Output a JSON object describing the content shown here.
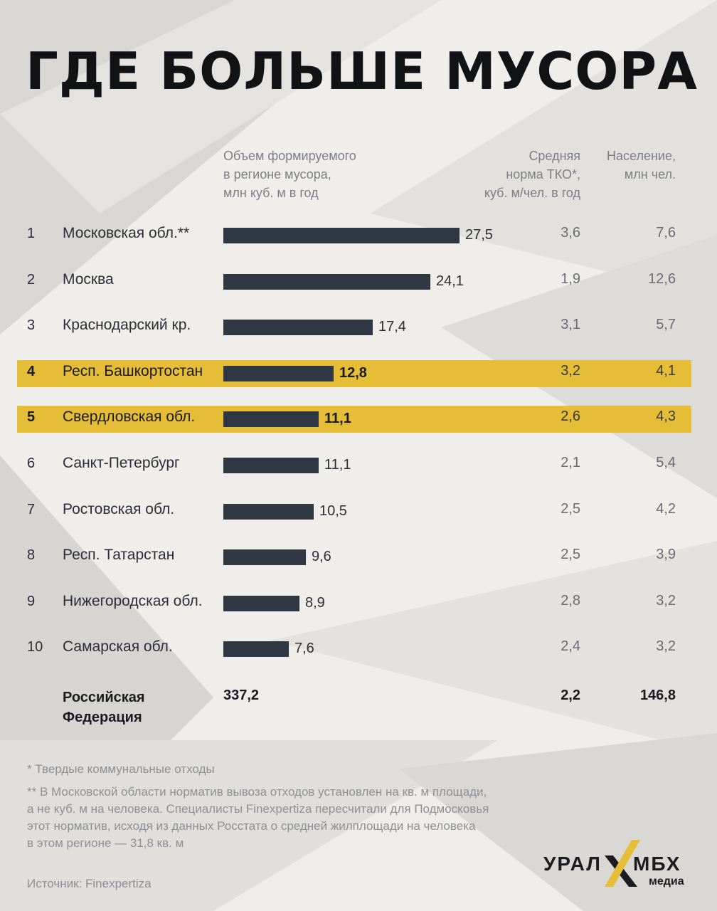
{
  "title": "ГДЕ БОЛЬШЕ МУСОРА",
  "columns": {
    "volume": "Объем формируемого\nв регионе мусора,\nмлн куб. м в год",
    "norm": "Средняя\nнорма ТКО*,\nкуб. м/чел. в год",
    "population": "Население,\nмлн чел."
  },
  "highlight_color": "#e6bd36",
  "bar_color": "#2f3743",
  "rows": [
    {
      "rank": "1",
      "region": "Московская обл.**",
      "volume": "27,5",
      "norm": "3,6",
      "population": "7,6",
      "highlight": false
    },
    {
      "rank": "2",
      "region": "Москва",
      "volume": "24,1",
      "norm": "1,9",
      "population": "12,6",
      "highlight": false
    },
    {
      "rank": "3",
      "region": "Краснодарский кр.",
      "volume": "17,4",
      "norm": "3,1",
      "population": "5,7",
      "highlight": false
    },
    {
      "rank": "4",
      "region": "Респ. Башкортостан",
      "volume": "12,8",
      "norm": "3,2",
      "population": "4,1",
      "highlight": true
    },
    {
      "rank": "5",
      "region": "Свердловская обл.",
      "volume": "11,1",
      "norm": "2,6",
      "population": "4,3",
      "highlight": true
    },
    {
      "rank": "6",
      "region": "Санкт-Петербург",
      "volume": "11,1",
      "norm": "2,1",
      "population": "5,4",
      "highlight": false
    },
    {
      "rank": "7",
      "region": "Ростовская обл.",
      "volume": "10,5",
      "norm": "2,5",
      "population": "4,2",
      "highlight": false
    },
    {
      "rank": "8",
      "region": "Респ. Татарстан",
      "volume": "9,6",
      "norm": "2,5",
      "population": "3,9",
      "highlight": false
    },
    {
      "rank": "9",
      "region": "Нижегородская обл.",
      "volume": "8,9",
      "norm": "2,8",
      "population": "3,2",
      "highlight": false
    },
    {
      "rank": "10",
      "region": "Самарская обл.",
      "volume": "7,6",
      "norm": "2,4",
      "population": "3,2",
      "highlight": false
    }
  ],
  "total": {
    "label": "Российская\nФедерация",
    "volume": "337,2",
    "norm": "2,2",
    "population": "146,8"
  },
  "footnotes": {
    "note1": "* Твердые коммунальные отходы",
    "note2": "** В Московской области норматив вывоза отходов установлен на кв. м площади,\nа не куб. м на человека. Специалисты Finexpertiza пересчитали для Подмосковья\nэтот норматив, исходя из данных Росстата о средней жилплощади на человека\nв этом регионе — 31,8 кв. м"
  },
  "source": "Источник: Finexpertiza",
  "logo": {
    "left": "УРАЛ",
    "right": "МБХ",
    "sub": "медиа"
  },
  "chart_data": {
    "type": "bar",
    "title": "ГДЕ БОЛЬШЕ МУСОРА",
    "orientation": "horizontal",
    "categories": [
      "Московская обл.**",
      "Москва",
      "Краснодарский кр.",
      "Респ. Башкортостан",
      "Свердловская обл.",
      "Санкт-Петербург",
      "Ростовская обл.",
      "Респ. Татарстан",
      "Нижегородская обл.",
      "Самарская обл."
    ],
    "series": [
      {
        "name": "Объем формируемого в регионе мусора, млн куб. м в год",
        "values": [
          27.5,
          24.1,
          17.4,
          12.8,
          11.1,
          11.1,
          10.5,
          9.6,
          8.9,
          7.6
        ]
      }
    ],
    "extra_columns": {
      "Средняя норма ТКО*, куб. м/чел. в год": [
        3.6,
        1.9,
        3.1,
        3.2,
        2.6,
        2.1,
        2.5,
        2.5,
        2.8,
        2.4
      ],
      "Население, млн чел.": [
        7.6,
        12.6,
        5.7,
        4.1,
        4.3,
        5.4,
        4.2,
        3.9,
        3.2,
        3.2
      ]
    },
    "totals": {
      "volume": 337.2,
      "norm": 2.2,
      "population": 146.8
    },
    "highlighted": [
      "Респ. Башкортостан",
      "Свердловская обл."
    ],
    "grid": false
  }
}
